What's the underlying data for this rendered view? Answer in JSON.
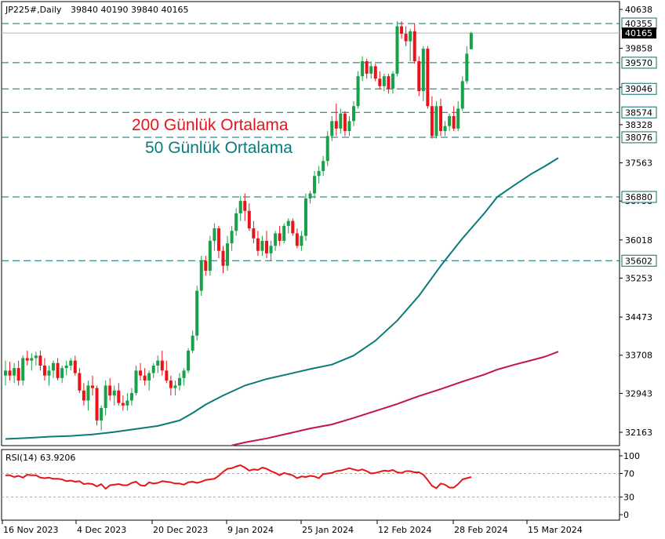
{
  "header": {
    "symbol": "JP225#,Daily",
    "ohlc": "39840 40190 39840 40165"
  },
  "annotations": {
    "ma200": "200 Günlük Ortalama",
    "ma50": "50 Günlük Ortalama"
  },
  "rsi": {
    "label": "RSI(14) 63.9206",
    "ticks": [
      "100",
      "70",
      "30",
      "0"
    ],
    "levels": [
      70,
      30
    ],
    "values": [
      67,
      67,
      64,
      66,
      63,
      68,
      67,
      67,
      63,
      62,
      63,
      61,
      61,
      60,
      57,
      58,
      56,
      57,
      52,
      53,
      52,
      48,
      52,
      44,
      50,
      51,
      52,
      50,
      50,
      54,
      56,
      50,
      49,
      55,
      53,
      54,
      57,
      56,
      55,
      53,
      53,
      51,
      55,
      56,
      54,
      56,
      59,
      60,
      61,
      66,
      73,
      78,
      79,
      82,
      84,
      80,
      75,
      77,
      76,
      80,
      78,
      74,
      71,
      67,
      71,
      69,
      67,
      62,
      65,
      64,
      66,
      65,
      62,
      69,
      70,
      71,
      74,
      75,
      77,
      79,
      77,
      75,
      77,
      74,
      70,
      71,
      73,
      75,
      74,
      76,
      72,
      71,
      74,
      74,
      72,
      72,
      68,
      59,
      49,
      45,
      53,
      51,
      46,
      46,
      52,
      60,
      62,
      64
    ]
  },
  "xaxis": {
    "labels": [
      "16 Nov 2023",
      "4 Dec 2023",
      "20 Dec 2023",
      "9 Jan 2024",
      "25 Jan 2024",
      "12 Feb 2024",
      "28 Feb 2024",
      "15 Mar 2024"
    ]
  },
  "colors": {
    "bull": "#19a04a",
    "bear": "#e8141a",
    "ma50": "#0b7a7a",
    "ma200": "#c2144e",
    "level": "#0b6b6b",
    "rsi": "#e8141a"
  },
  "chart_data": {
    "type": "candlestick",
    "title": "JP225#,Daily",
    "ylim": [
      31900,
      40950
    ],
    "y_ticks": [
      "40638",
      "39858",
      "39078",
      "38328",
      "37563",
      "36798",
      "36018",
      "35253",
      "34473",
      "33708",
      "32943",
      "32163"
    ],
    "horizontal_levels": [
      40355,
      39570,
      39046,
      38574,
      38076,
      36880,
      35602
    ],
    "last_price": 40165,
    "ohlc": [
      [
        33300,
        33600,
        33100,
        33400
      ],
      [
        33400,
        33580,
        33200,
        33300
      ],
      [
        33300,
        33550,
        33150,
        33450
      ],
      [
        33450,
        33600,
        33100,
        33200
      ],
      [
        33200,
        33700,
        33100,
        33650
      ],
      [
        33650,
        33800,
        33500,
        33600
      ],
      [
        33600,
        33750,
        33400,
        33650
      ],
      [
        33650,
        33780,
        33500,
        33700
      ],
      [
        33700,
        33800,
        33400,
        33500
      ],
      [
        33500,
        33650,
        33200,
        33300
      ],
      [
        33300,
        33500,
        33100,
        33400
      ],
      [
        33400,
        33600,
        33250,
        33550
      ],
      [
        33550,
        33650,
        33200,
        33250
      ],
      [
        33250,
        33500,
        33150,
        33450
      ],
      [
        33450,
        33600,
        33300,
        33500
      ],
      [
        33500,
        33650,
        33400,
        33600
      ],
      [
        33600,
        33700,
        33300,
        33350
      ],
      [
        33350,
        33450,
        32950,
        33000
      ],
      [
        33000,
        33150,
        32700,
        32800
      ],
      [
        32800,
        33200,
        32600,
        33100
      ],
      [
        33100,
        33300,
        32900,
        33050
      ],
      [
        33050,
        33100,
        32300,
        32400
      ],
      [
        32400,
        32700,
        32200,
        32650
      ],
      [
        32650,
        33200,
        32500,
        33100
      ],
      [
        33100,
        33250,
        32800,
        32900
      ],
      [
        32900,
        33100,
        32700,
        33000
      ],
      [
        33000,
        33150,
        32700,
        32750
      ],
      [
        32750,
        32900,
        32600,
        32700
      ],
      [
        32700,
        32950,
        32600,
        32800
      ],
      [
        32800,
        33050,
        32700,
        32950
      ],
      [
        32950,
        33500,
        32900,
        33400
      ],
      [
        33400,
        33550,
        33200,
        33300
      ],
      [
        33300,
        33450,
        33100,
        33200
      ],
      [
        33200,
        33400,
        33000,
        33350
      ],
      [
        33350,
        33550,
        33250,
        33500
      ],
      [
        33500,
        33700,
        33350,
        33600
      ],
      [
        33600,
        33800,
        33300,
        33400
      ],
      [
        33400,
        33600,
        33150,
        33200
      ],
      [
        33200,
        33300,
        32900,
        33050
      ],
      [
        33050,
        33200,
        32900,
        33100
      ],
      [
        33100,
        33350,
        33000,
        33250
      ],
      [
        33250,
        33450,
        33100,
        33400
      ],
      [
        33400,
        33850,
        33350,
        33800
      ],
      [
        33800,
        34200,
        33750,
        34100
      ],
      [
        34100,
        35100,
        34000,
        35000
      ],
      [
        35000,
        35700,
        34900,
        35600
      ],
      [
        35600,
        35700,
        35300,
        35400
      ],
      [
        35400,
        36100,
        35300,
        36000
      ],
      [
        36000,
        36350,
        35800,
        36250
      ],
      [
        36250,
        36300,
        35650,
        35800
      ],
      [
        35800,
        35900,
        35350,
        35500
      ],
      [
        35500,
        36100,
        35400,
        35950
      ],
      [
        35950,
        36300,
        35800,
        36200
      ],
      [
        36200,
        36650,
        36100,
        36550
      ],
      [
        36550,
        36900,
        36400,
        36800
      ],
      [
        36800,
        36950,
        36400,
        36600
      ],
      [
        36600,
        36750,
        36200,
        36250
      ],
      [
        36250,
        36400,
        35950,
        36050
      ],
      [
        36050,
        36200,
        35700,
        35800
      ],
      [
        35800,
        36100,
        35700,
        36000
      ],
      [
        36000,
        36200,
        35650,
        35750
      ],
      [
        35750,
        36000,
        35600,
        35900
      ],
      [
        35900,
        36200,
        35800,
        36150
      ],
      [
        36150,
        36300,
        35900,
        36000
      ],
      [
        36000,
        36350,
        35950,
        36300
      ],
      [
        36300,
        36450,
        36150,
        36400
      ],
      [
        36400,
        36450,
        36100,
        36150
      ],
      [
        36150,
        36250,
        35850,
        35900
      ],
      [
        35900,
        36200,
        35800,
        36100
      ],
      [
        36100,
        36950,
        36000,
        36850
      ],
      [
        36850,
        37000,
        36750,
        36950
      ],
      [
        36950,
        37400,
        36850,
        37300
      ],
      [
        37300,
        37500,
        37150,
        37400
      ],
      [
        37400,
        37700,
        37300,
        37600
      ],
      [
        37600,
        38200,
        37500,
        38100
      ],
      [
        38100,
        38500,
        38000,
        38400
      ],
      [
        38400,
        38750,
        38100,
        38250
      ],
      [
        38250,
        38650,
        38150,
        38550
      ],
      [
        38550,
        38600,
        38100,
        38200
      ],
      [
        38200,
        38500,
        38100,
        38400
      ],
      [
        38400,
        38800,
        38300,
        38700
      ],
      [
        38700,
        39400,
        38650,
        39300
      ],
      [
        39300,
        39700,
        39200,
        39600
      ],
      [
        39600,
        39650,
        39250,
        39350
      ],
      [
        39350,
        39600,
        39250,
        39500
      ],
      [
        39500,
        39550,
        39200,
        39250
      ],
      [
        39250,
        39400,
        39050,
        39100
      ],
      [
        39100,
        39350,
        39000,
        39300
      ],
      [
        39300,
        39350,
        38950,
        39050
      ],
      [
        39050,
        39400,
        38950,
        39350
      ],
      [
        39350,
        40400,
        39300,
        40300
      ],
      [
        40300,
        40400,
        40050,
        40150
      ],
      [
        40150,
        40300,
        39900,
        40000
      ],
      [
        40000,
        40250,
        39600,
        40200
      ],
      [
        40200,
        40350,
        39550,
        39600
      ],
      [
        39600,
        39700,
        38900,
        39000
      ],
      [
        39000,
        39900,
        38800,
        39850
      ],
      [
        39850,
        39900,
        38650,
        38700
      ],
      [
        38700,
        38900,
        38050,
        38100
      ],
      [
        38100,
        38800,
        38050,
        38700
      ],
      [
        38700,
        38850,
        38100,
        38200
      ],
      [
        38200,
        38400,
        38100,
        38300
      ],
      [
        38300,
        38550,
        38200,
        38500
      ],
      [
        38500,
        38700,
        38200,
        38250
      ],
      [
        38250,
        38800,
        38200,
        38650
      ],
      [
        38650,
        39300,
        38600,
        39200
      ],
      [
        39200,
        39900,
        39150,
        39750
      ],
      [
        39840,
        40190,
        39840,
        40165
      ]
    ],
    "ma50": [
      [
        0,
        32030
      ],
      [
        5,
        32050
      ],
      [
        10,
        32075
      ],
      [
        15,
        32090
      ],
      [
        20,
        32120
      ],
      [
        25,
        32170
      ],
      [
        30,
        32230
      ],
      [
        35,
        32290
      ],
      [
        40,
        32400
      ],
      [
        43,
        32550
      ],
      [
        46,
        32720
      ],
      [
        50,
        32900
      ],
      [
        55,
        33100
      ],
      [
        60,
        33230
      ],
      [
        65,
        33330
      ],
      [
        70,
        33430
      ],
      [
        75,
        33520
      ],
      [
        80,
        33700
      ],
      [
        85,
        34000
      ],
      [
        90,
        34400
      ],
      [
        95,
        34900
      ],
      [
        100,
        35500
      ],
      [
        105,
        36050
      ],
      [
        110,
        36550
      ],
      [
        113,
        36880
      ],
      [
        117,
        37120
      ],
      [
        121,
        37350
      ],
      [
        124,
        37500
      ],
      [
        127,
        37660
      ]
    ],
    "ma200": [
      [
        52,
        31900
      ],
      [
        55,
        31960
      ],
      [
        60,
        32040
      ],
      [
        65,
        32140
      ],
      [
        70,
        32240
      ],
      [
        75,
        32320
      ],
      [
        80,
        32450
      ],
      [
        85,
        32590
      ],
      [
        90,
        32730
      ],
      [
        95,
        32890
      ],
      [
        100,
        33030
      ],
      [
        105,
        33180
      ],
      [
        110,
        33320
      ],
      [
        113,
        33420
      ],
      [
        117,
        33520
      ],
      [
        121,
        33610
      ],
      [
        124,
        33680
      ],
      [
        127,
        33780
      ]
    ]
  }
}
